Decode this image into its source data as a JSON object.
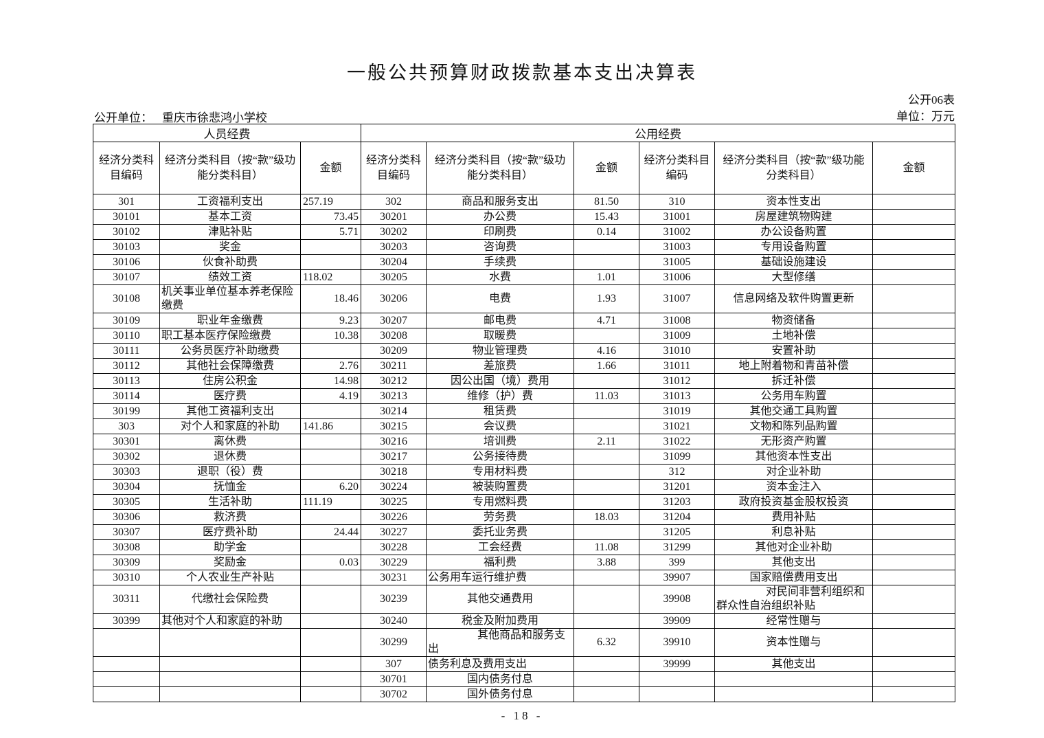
{
  "page": {
    "title": "一般公共预算财政拨款基本支出决算表",
    "form_no": "公开06表",
    "unit_note": "单位：万元",
    "org_label": "公开单位：",
    "org_name": "重庆市徐悲鸿小学校",
    "page_number": "- 18 -"
  },
  "table": {
    "group_headers": [
      "人员经费",
      "公用经费"
    ],
    "col_headers": {
      "code": "经济分类科目编码",
      "subject": "经济分类科目（按“款”级功能分类科目）",
      "amount": "金额"
    },
    "rows": [
      [
        "301",
        "工资福利支出",
        "257.19",
        "302",
        "商品和服务支出",
        "81.50",
        "310",
        "资本性支出",
        ""
      ],
      [
        "30101",
        "基本工资",
        "73.45",
        "30201",
        "办公费",
        "15.43",
        "31001",
        "房屋建筑物购建",
        ""
      ],
      [
        "30102",
        "津贴补贴",
        "5.71",
        "30202",
        "印刷费",
        "0.14",
        "31002",
        "办公设备购置",
        ""
      ],
      [
        "30103",
        "奖金",
        "",
        "30203",
        "咨询费",
        "",
        "31003",
        "专用设备购置",
        ""
      ],
      [
        "30106",
        "伙食补助费",
        "",
        "30204",
        "手续费",
        "",
        "31005",
        "基础设施建设",
        ""
      ],
      [
        "30107",
        "绩效工资",
        "118.02",
        "30205",
        "水费",
        "1.01",
        "31006",
        "大型修缮",
        ""
      ],
      [
        "30108",
        "机关事业单位基本养老保险缴费",
        "18.46",
        "30206",
        "电费",
        "1.93",
        "31007",
        "信息网络及软件购置更新",
        ""
      ],
      [
        "30109",
        "职业年金缴费",
        "9.23",
        "30207",
        "邮电费",
        "4.71",
        "31008",
        "物资储备",
        ""
      ],
      [
        "30110",
        "职工基本医疗保险缴费",
        "10.38",
        "30208",
        "取暖费",
        "",
        "31009",
        "土地补偿",
        ""
      ],
      [
        "30111",
        "公务员医疗补助缴费",
        "",
        "30209",
        "物业管理费",
        "4.16",
        "31010",
        "安置补助",
        ""
      ],
      [
        "30112",
        "其他社会保障缴费",
        "2.76",
        "30211",
        "差旅费",
        "1.66",
        "31011",
        "地上附着物和青苗补偿",
        ""
      ],
      [
        "30113",
        "住房公积金",
        "14.98",
        "30212",
        "因公出国（境）费用",
        "",
        "31012",
        "拆迁补偿",
        ""
      ],
      [
        "30114",
        "医疗费",
        "4.19",
        "30213",
        "维修（护）费",
        "11.03",
        "31013",
        "公务用车购置",
        ""
      ],
      [
        "30199",
        "其他工资福利支出",
        "",
        "30214",
        "租赁费",
        "",
        "31019",
        "其他交通工具购置",
        ""
      ],
      [
        "303",
        "对个人和家庭的补助",
        "141.86",
        "30215",
        "会议费",
        "",
        "31021",
        "文物和陈列品购置",
        ""
      ],
      [
        "30301",
        "离休费",
        "",
        "30216",
        "培训费",
        "2.11",
        "31022",
        "无形资产购置",
        ""
      ],
      [
        "30302",
        "退休费",
        "",
        "30217",
        "公务接待费",
        "",
        "31099",
        "其他资本性支出",
        ""
      ],
      [
        "30303",
        "退职（役）费",
        "",
        "30218",
        "专用材料费",
        "",
        "312",
        "对企业补助",
        ""
      ],
      [
        "30304",
        "抚恤金",
        "6.20",
        "30224",
        "被装购置费",
        "",
        "31201",
        "资本金注入",
        ""
      ],
      [
        "30305",
        "生活补助",
        "111.19",
        "30225",
        "专用燃料费",
        "",
        "31203",
        "政府投资基金股权投资",
        ""
      ],
      [
        "30306",
        "救济费",
        "",
        "30226",
        "劳务费",
        "18.03",
        "31204",
        "费用补贴",
        ""
      ],
      [
        "30307",
        "医疗费补助",
        "24.44",
        "30227",
        "委托业务费",
        "",
        "31205",
        "利息补贴",
        ""
      ],
      [
        "30308",
        "助学金",
        "",
        "30228",
        "工会经费",
        "11.08",
        "31299",
        "其他对企业补助",
        ""
      ],
      [
        "30309",
        "奖励金",
        "0.03",
        "30229",
        "福利费",
        "3.88",
        "399",
        "其他支出",
        ""
      ],
      [
        "30310",
        "个人农业生产补贴",
        "",
        "30231",
        "公务用车运行维护费",
        "",
        "39907",
        "国家赔偿费用支出",
        ""
      ],
      [
        "30311",
        "代缴社会保险费",
        "",
        "30239",
        "其他交通费用",
        "",
        "39908",
        "对民间非营利组织和群众性自治组织补贴",
        ""
      ],
      [
        "30399",
        "其他对个人和家庭的补助",
        "",
        "30240",
        "税金及附加费用",
        "",
        "39909",
        "经常性赠与",
        ""
      ],
      [
        "",
        "",
        "",
        "30299",
        "其他商品和服务支出",
        "6.32",
        "39910",
        "资本性赠与",
        ""
      ],
      [
        "",
        "",
        "",
        "307",
        "债务利息及费用支出",
        "",
        "39999",
        "其他支出",
        ""
      ],
      [
        "",
        "",
        "",
        "30701",
        "国内债务付息",
        "",
        "",
        "",
        ""
      ],
      [
        "",
        "",
        "",
        "30702",
        "国外债务付息",
        "",
        "",
        "",
        ""
      ]
    ]
  }
}
